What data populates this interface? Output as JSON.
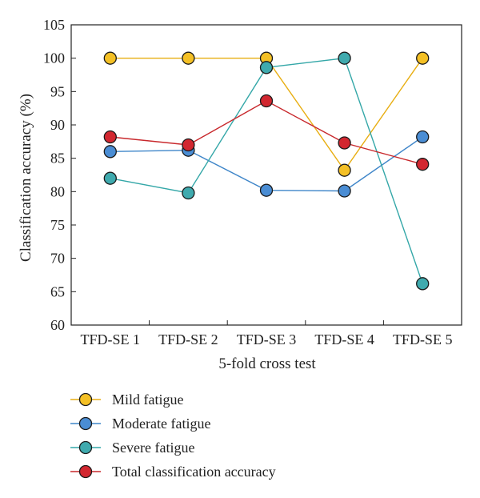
{
  "chart_data": {
    "type": "line",
    "title": "",
    "xlabel": "5-fold cross test",
    "ylabel": "Classification accuracy (%)",
    "categories": [
      "TFD-SE 1",
      "TFD-SE 2",
      "TFD-SE 3",
      "TFD-SE 4",
      "TFD-SE 5"
    ],
    "ylim": [
      60,
      105
    ],
    "yticks": [
      "60",
      "65",
      "70",
      "75",
      "80",
      "85",
      "90",
      "95",
      "100",
      "105"
    ],
    "grid": false,
    "legend_position": "bottom",
    "series": [
      {
        "name": "Mild fatigue",
        "values": [
          100,
          100,
          100,
          83.2,
          100
        ],
        "color": "#E8AE12",
        "fill": "#F4C025"
      },
      {
        "name": "Moderate fatigue",
        "values": [
          86,
          86.2,
          80.2,
          80.1,
          88.2
        ],
        "color": "#3F86C9",
        "fill": "#4A8DD4"
      },
      {
        "name": "Severe fatigue",
        "values": [
          82,
          79.8,
          98.6,
          100,
          66.2
        ],
        "color": "#34A7A8",
        "fill": "#3FAAAE"
      },
      {
        "name": "Total classification accuracy",
        "values": [
          88.2,
          87,
          93.6,
          87.3,
          84.1
        ],
        "color": "#C8282C",
        "fill": "#D22730"
      }
    ]
  }
}
